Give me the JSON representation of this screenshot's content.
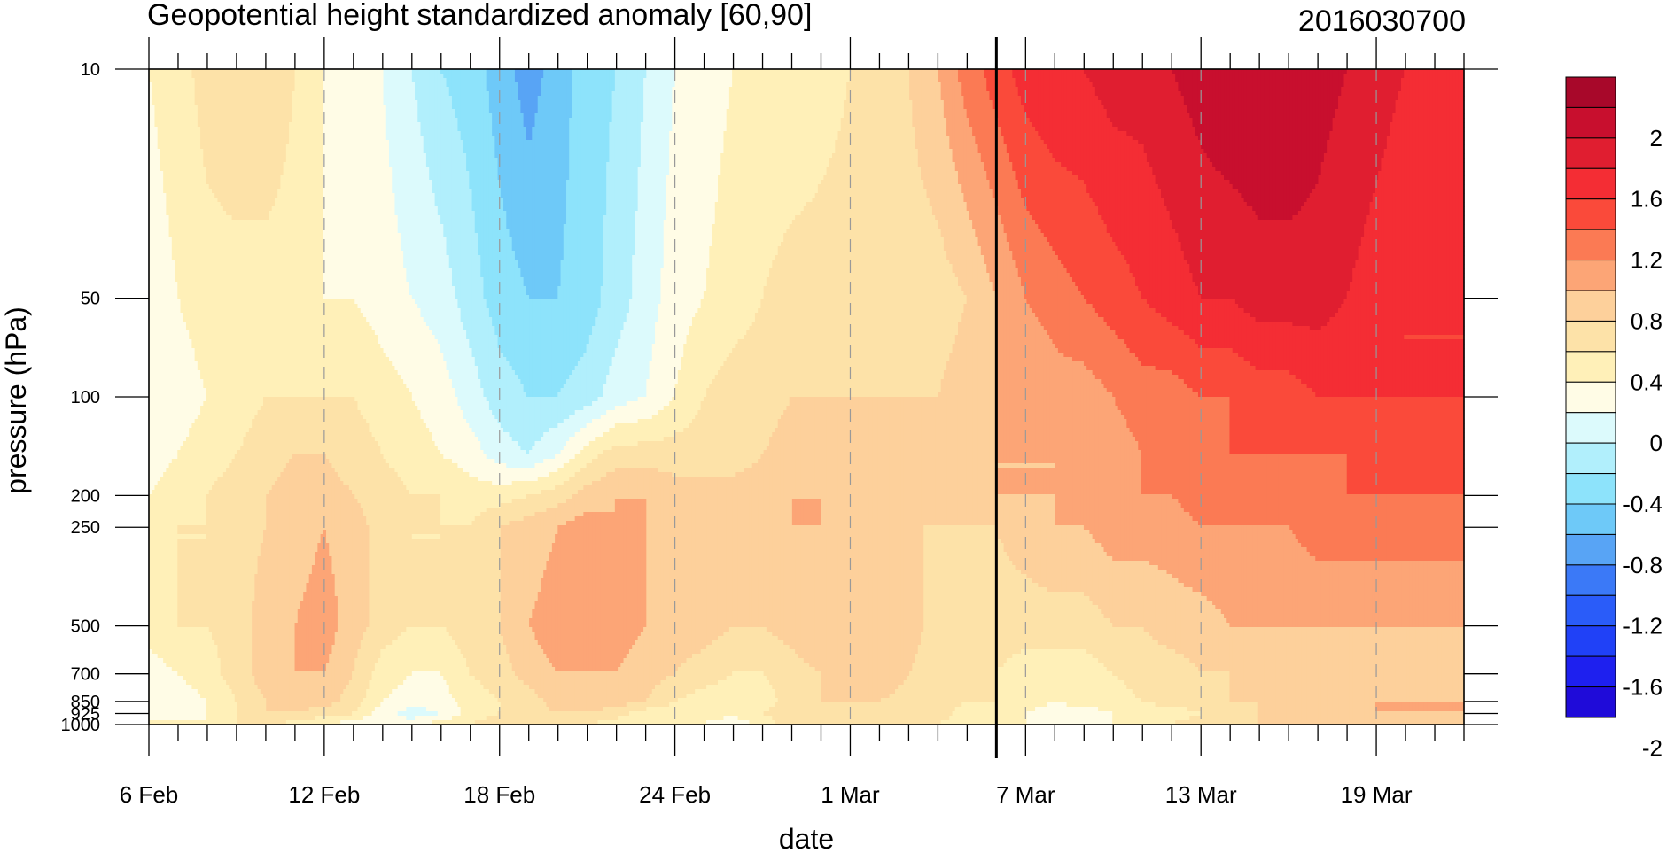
{
  "chart_data": {
    "type": "heatmap",
    "title": "Geopotential height standardized anomaly [60,90]",
    "subtitle": "2016030700",
    "xlabel": "date",
    "ylabel": "pressure (hPa)",
    "x_tick_labels": [
      "6 Feb",
      "12 Feb",
      "18 Feb",
      "24 Feb",
      "1 Mar",
      "7 Mar",
      "13 Mar",
      "19 Mar"
    ],
    "y_tick_labels": [
      "10",
      "50",
      "100",
      "200",
      "250",
      "500",
      "700",
      "850",
      "925",
      "1000"
    ],
    "y_scale": "log",
    "ylim": [
      1000,
      10
    ],
    "x_range_days": [
      0,
      45
    ],
    "marker_line_day": 29,
    "colorbar": {
      "levels": [
        -2.2,
        -2.0,
        -1.8,
        -1.6,
        -1.4,
        -1.2,
        -1.0,
        -0.8,
        -0.6,
        -0.4,
        -0.2,
        0.0,
        0.2,
        0.4,
        0.6,
        0.8,
        1.0,
        1.2,
        1.4,
        1.6,
        1.8,
        2.0,
        2.2
      ],
      "colors": [
        "#1f0bd9",
        "#1e20ef",
        "#2041f7",
        "#2a5cf9",
        "#3b79f7",
        "#58a4f5",
        "#6ec9f8",
        "#8de3fb",
        "#b1effc",
        "#dcfafc",
        "#fffce6",
        "#fff0b8",
        "#fde2a8",
        "#fdd09b",
        "#fca576",
        "#fb7a54",
        "#fa4a3a",
        "#f42d34",
        "#e01e30",
        "#c80f2e",
        "#a8082a"
      ],
      "tick_labels": [
        "2",
        "1.6",
        "1.2",
        "0.8",
        "0.4",
        "0",
        "-0.4",
        "-0.8",
        "-1.2",
        "-1.6",
        "-2"
      ]
    },
    "series": [
      {
        "pressure": 1000,
        "values": [
          0.1,
          0.1,
          0.0,
          0.2,
          0.3,
          0.1,
          0.0,
          -0.1,
          -0.2,
          -0.1,
          0.1,
          0.2,
          0.3,
          0.3,
          0.3,
          0.2,
          0.1,
          0.0,
          0.1,
          0.0,
          -0.2,
          0.1,
          0.3,
          0.3,
          0.2,
          0.3,
          0.3,
          0.2,
          0.1,
          0.1,
          0.0,
          -0.1,
          -0.2,
          0.0,
          0.1,
          0.2,
          0.3,
          0.3,
          0.4,
          0.4,
          0.5,
          0.5,
          0.4,
          0.4,
          0.4,
          0.4
        ]
      },
      {
        "pressure": 925,
        "values": [
          -0.1,
          -0.1,
          0.0,
          0.2,
          0.4,
          0.4,
          0.3,
          0.2,
          -0.1,
          -0.3,
          -0.2,
          0.1,
          0.2,
          0.3,
          0.4,
          0.4,
          0.3,
          0.1,
          0.1,
          0.1,
          0.1,
          0.2,
          0.3,
          0.4,
          0.3,
          0.3,
          0.3,
          0.3,
          0.1,
          0.0,
          0.0,
          -0.1,
          -0.1,
          0.0,
          0.1,
          0.1,
          0.2,
          0.3,
          0.4,
          0.4,
          0.5,
          0.5,
          0.6,
          0.6,
          0.6,
          0.6
        ]
      },
      {
        "pressure": 850,
        "values": [
          -0.2,
          -0.1,
          0.0,
          0.2,
          0.4,
          0.5,
          0.5,
          0.3,
          0.0,
          -0.1,
          -0.1,
          0.1,
          0.2,
          0.3,
          0.5,
          0.5,
          0.5,
          0.4,
          0.2,
          0.1,
          0.1,
          0.1,
          0.3,
          0.4,
          0.4,
          0.4,
          0.3,
          0.3,
          0.2,
          0.2,
          0.1,
          0.0,
          0.1,
          0.1,
          0.2,
          0.3,
          0.3,
          0.4,
          0.4,
          0.4,
          0.6,
          0.6,
          0.6,
          0.6,
          0.6,
          0.6
        ]
      },
      {
        "pressure": 700,
        "values": [
          -0.1,
          0.0,
          0.1,
          0.3,
          0.5,
          0.6,
          0.6,
          0.4,
          0.1,
          0.0,
          0.0,
          0.2,
          0.3,
          0.5,
          0.6,
          0.6,
          0.6,
          0.5,
          0.4,
          0.3,
          0.2,
          0.2,
          0.3,
          0.4,
          0.5,
          0.6,
          0.4,
          0.3,
          0.3,
          0.2,
          0.1,
          0.1,
          0.1,
          0.2,
          0.3,
          0.3,
          0.4,
          0.4,
          0.5,
          0.5,
          0.5,
          0.5,
          0.4,
          0.5,
          0.5,
          0.5
        ]
      },
      {
        "pressure": 500,
        "values": [
          0.1,
          0.2,
          0.2,
          0.3,
          0.5,
          0.6,
          0.7,
          0.5,
          0.3,
          0.2,
          0.2,
          0.3,
          0.4,
          0.6,
          0.7,
          0.7,
          0.7,
          0.6,
          0.5,
          0.5,
          0.4,
          0.4,
          0.5,
          0.6,
          0.6,
          0.6,
          0.5,
          0.3,
          0.2,
          0.3,
          0.3,
          0.3,
          0.3,
          0.4,
          0.4,
          0.5,
          0.5,
          0.6,
          0.6,
          0.6,
          0.6,
          0.6,
          0.6,
          0.6,
          0.6,
          0.6
        ]
      },
      {
        "pressure": 250,
        "values": [
          0.1,
          0.2,
          0.2,
          0.3,
          0.4,
          0.5,
          0.6,
          0.5,
          0.3,
          0.2,
          0.2,
          0.2,
          0.4,
          0.5,
          0.6,
          0.7,
          0.6,
          0.6,
          0.5,
          0.5,
          0.5,
          0.5,
          0.6,
          0.6,
          0.5,
          0.4,
          0.4,
          0.4,
          0.4,
          0.4,
          0.5,
          0.6,
          0.6,
          0.7,
          0.7,
          0.7,
          0.8,
          0.8,
          0.8,
          0.8,
          0.9,
          0.9,
          0.9,
          0.9,
          0.9,
          0.9
        ]
      },
      {
        "pressure": 200,
        "values": [
          0.0,
          0.1,
          0.2,
          0.3,
          0.4,
          0.5,
          0.5,
          0.4,
          0.3,
          0.2,
          0.2,
          0.1,
          0.1,
          0.2,
          0.3,
          0.5,
          0.6,
          0.6,
          0.5,
          0.5,
          0.5,
          0.5,
          0.6,
          0.6,
          0.5,
          0.4,
          0.4,
          0.4,
          0.5,
          0.6,
          0.6,
          0.6,
          0.7,
          0.7,
          0.8,
          0.8,
          0.9,
          0.9,
          0.9,
          0.9,
          0.9,
          1.0,
          1.0,
          1.0,
          1.0,
          1.0
        ]
      },
      {
        "pressure": 150,
        "values": [
          -0.1,
          0.0,
          0.1,
          0.2,
          0.3,
          0.4,
          0.4,
          0.3,
          0.2,
          0.1,
          0.0,
          -0.1,
          -0.3,
          -0.4,
          -0.2,
          0.1,
          0.3,
          0.3,
          0.3,
          0.3,
          0.3,
          0.4,
          0.5,
          0.5,
          0.4,
          0.4,
          0.4,
          0.4,
          0.5,
          0.6,
          0.6,
          0.6,
          0.7,
          0.7,
          0.8,
          0.8,
          0.9,
          1.0,
          1.0,
          1.0,
          1.0,
          1.0,
          1.1,
          1.1,
          1.1,
          1.1
        ]
      },
      {
        "pressure": 100,
        "values": [
          -0.1,
          -0.1,
          0.0,
          0.1,
          0.2,
          0.2,
          0.2,
          0.2,
          0.1,
          0.0,
          -0.1,
          -0.3,
          -0.5,
          -0.6,
          -0.6,
          -0.5,
          -0.3,
          -0.2,
          0.0,
          0.2,
          0.3,
          0.3,
          0.4,
          0.4,
          0.4,
          0.4,
          0.4,
          0.4,
          0.5,
          0.6,
          0.6,
          0.7,
          0.7,
          0.8,
          0.9,
          0.9,
          1.0,
          1.0,
          1.1,
          1.1,
          1.2,
          1.2,
          1.2,
          1.2,
          1.2,
          1.2
        ]
      },
      {
        "pressure": 50,
        "values": [
          -0.1,
          0.0,
          0.1,
          0.1,
          0.1,
          0.1,
          0.0,
          0.0,
          -0.1,
          -0.2,
          -0.3,
          -0.5,
          -0.7,
          -0.8,
          -0.8,
          -0.7,
          -0.5,
          -0.3,
          -0.1,
          0.0,
          0.1,
          0.2,
          0.3,
          0.3,
          0.3,
          0.3,
          0.3,
          0.3,
          0.4,
          0.6,
          0.8,
          0.9,
          1.0,
          1.1,
          1.2,
          1.3,
          1.4,
          1.4,
          1.5,
          1.5,
          1.5,
          1.4,
          1.3,
          1.2,
          1.2,
          1.2
        ]
      },
      {
        "pressure": 10,
        "values": [
          0.0,
          0.1,
          0.3,
          0.4,
          0.4,
          0.2,
          0.0,
          -0.1,
          -0.2,
          -0.4,
          -0.6,
          -0.7,
          -0.9,
          -1.1,
          -0.9,
          -0.7,
          -0.6,
          -0.4,
          -0.2,
          -0.1,
          0.0,
          0.0,
          0.0,
          0.1,
          0.2,
          0.4,
          0.4,
          0.6,
          0.9,
          1.1,
          1.3,
          1.4,
          1.4,
          1.5,
          1.5,
          1.6,
          1.7,
          1.8,
          1.8,
          1.8,
          1.7,
          1.6,
          1.5,
          1.4,
          1.4,
          1.3
        ]
      }
    ]
  }
}
